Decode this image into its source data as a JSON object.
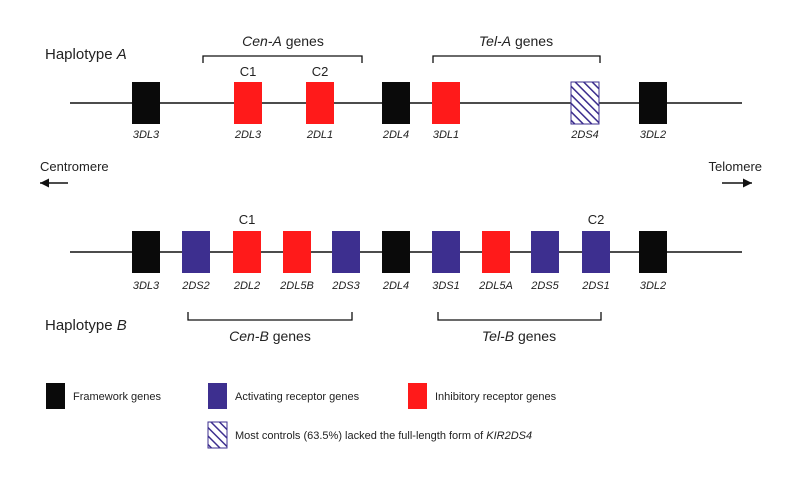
{
  "colors": {
    "framework": "#0a0a0a",
    "activating": "#3d2f8f",
    "inhibitory": "#ff1a1a",
    "line": "#111111",
    "hatch_stroke": "#3d2f8f",
    "background": "#ffffff"
  },
  "haplotype_a": {
    "title_prefix": "Haplotype ",
    "title_italic": "A",
    "group_cen": {
      "italic": "Cen-A",
      "plain": " genes"
    },
    "group_tel": {
      "italic": "Tel-A",
      "plain": " genes"
    },
    "genes": [
      {
        "name": "3DL3",
        "type": "framework",
        "allele": ""
      },
      {
        "name": "2DL3",
        "type": "inhibitory",
        "allele": "C1"
      },
      {
        "name": "2DL1",
        "type": "inhibitory",
        "allele": "C2"
      },
      {
        "name": "2DL4",
        "type": "framework",
        "allele": ""
      },
      {
        "name": "3DL1",
        "type": "inhibitory",
        "allele": ""
      },
      {
        "name": "2DS4",
        "type": "hatched",
        "allele": ""
      },
      {
        "name": "3DL2",
        "type": "framework",
        "allele": ""
      }
    ]
  },
  "haplotype_b": {
    "title_prefix": "Haplotype ",
    "title_italic": "B",
    "group_cen": {
      "italic": "Cen-B",
      "plain": " genes"
    },
    "group_tel": {
      "italic": "Tel-B",
      "plain": " genes"
    },
    "genes": [
      {
        "name": "3DL3",
        "type": "framework",
        "allele": ""
      },
      {
        "name": "2DS2",
        "type": "activating",
        "allele": ""
      },
      {
        "name": "2DL2",
        "type": "inhibitory",
        "allele": "C1"
      },
      {
        "name": "2DL5B",
        "type": "inhibitory",
        "allele": ""
      },
      {
        "name": "2DS3",
        "type": "activating",
        "allele": ""
      },
      {
        "name": "2DL4",
        "type": "framework",
        "allele": ""
      },
      {
        "name": "3DS1",
        "type": "activating",
        "allele": ""
      },
      {
        "name": "2DL5A",
        "type": "inhibitory",
        "allele": ""
      },
      {
        "name": "2DS5",
        "type": "activating",
        "allele": ""
      },
      {
        "name": "2DS1",
        "type": "activating",
        "allele": "C2"
      },
      {
        "name": "3DL2",
        "type": "framework",
        "allele": ""
      }
    ]
  },
  "orientation": {
    "left": "Centromere",
    "right": "Telomere"
  },
  "legend": {
    "framework": "Framework genes",
    "activating": "Activating receptor genes",
    "inhibitory": "Inhibitory receptor genes",
    "hatched_prefix": "Most controls (63.5%) lacked the full-length form of ",
    "hatched_italic": "KIR2DS4"
  }
}
